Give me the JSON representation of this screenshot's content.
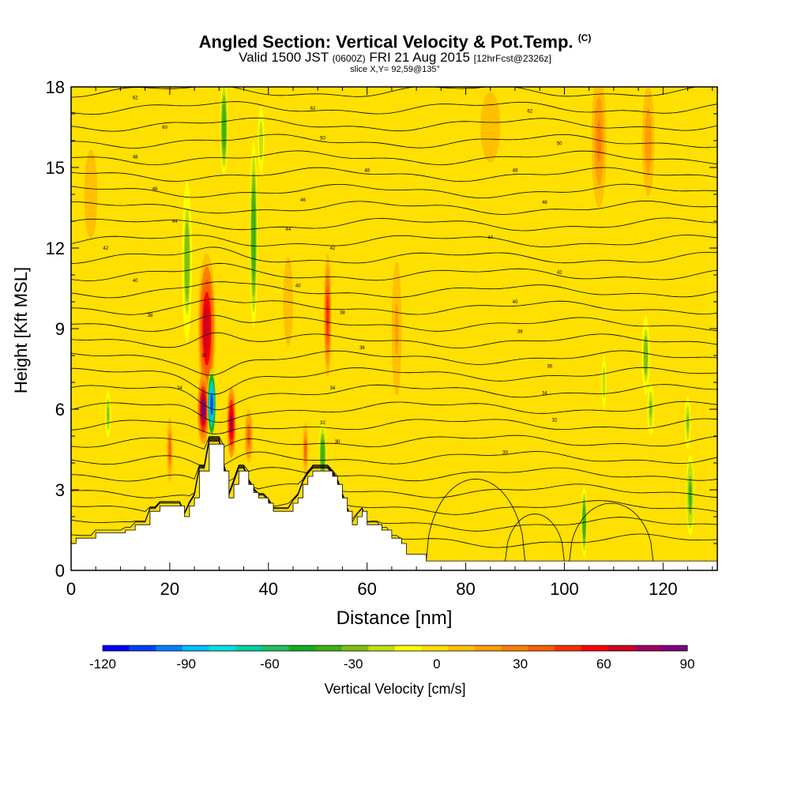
{
  "title": {
    "main": "Angled Section: Vertical Velocity & Pot.Temp.",
    "copyright_mark": "(C)",
    "valid_prefix": "Valid 1500 JST",
    "valid_utc": "(0600Z)",
    "valid_date": "FRI 21 Aug 2015",
    "forecast": "[12hrFcst@2326z]",
    "slice": "slice X,Y= 92,59@135°"
  },
  "chart_data": {
    "type": "heatmap",
    "xlabel": "Distance [nm]",
    "ylabel": "Height [Kft MSL]",
    "xlim": [
      0,
      131
    ],
    "ylim": [
      0,
      18
    ],
    "x_ticks": [
      0,
      20,
      40,
      60,
      80,
      100,
      120
    ],
    "y_ticks": [
      0,
      3,
      6,
      9,
      12,
      15,
      18
    ],
    "grid": false,
    "colorbar": {
      "label": "Vertical Velocity [cm/s]",
      "min": -120,
      "max": 90,
      "step": 10,
      "tick_labels": [
        -120,
        -90,
        -60,
        -30,
        0,
        30,
        60,
        90
      ],
      "colors": [
        "#0000ff",
        "#0040ff",
        "#0080ff",
        "#00c0ff",
        "#00e0e0",
        "#00d0a0",
        "#20c060",
        "#10b020",
        "#40b010",
        "#80c010",
        "#c0e010",
        "#ffff00",
        "#ffe000",
        "#ffc000",
        "#ffa000",
        "#ff8000",
        "#ff6000",
        "#ff3000",
        "#ff0000",
        "#d00020",
        "#a00060",
        "#800080"
      ]
    },
    "terrain_profile": [
      [
        0,
        1.0
      ],
      [
        1,
        1.0
      ],
      [
        1,
        1.2
      ],
      [
        5,
        1.2
      ],
      [
        5,
        1.4
      ],
      [
        11,
        1.4
      ],
      [
        11,
        1.5
      ],
      [
        13,
        1.5
      ],
      [
        13,
        1.7
      ],
      [
        16,
        1.7
      ],
      [
        16,
        2.2
      ],
      [
        18,
        2.2
      ],
      [
        18,
        2.4
      ],
      [
        23,
        2.4
      ],
      [
        23,
        2.0
      ],
      [
        24,
        2.0
      ],
      [
        24,
        2.4
      ],
      [
        25,
        2.4
      ],
      [
        25,
        2.7
      ],
      [
        26,
        2.7
      ],
      [
        26,
        3.7
      ],
      [
        28,
        3.7
      ],
      [
        28,
        4.7
      ],
      [
        31,
        4.7
      ],
      [
        31,
        3.7
      ],
      [
        32,
        3.7
      ],
      [
        32,
        2.7
      ],
      [
        33,
        2.7
      ],
      [
        33,
        3.2
      ],
      [
        34,
        3.2
      ],
      [
        34,
        3.7
      ],
      [
        36,
        3.7
      ],
      [
        36,
        3.2
      ],
      [
        37,
        3.2
      ],
      [
        37,
        2.9
      ],
      [
        38,
        2.9
      ],
      [
        38,
        2.7
      ],
      [
        40,
        2.7
      ],
      [
        40,
        2.5
      ],
      [
        41,
        2.5
      ],
      [
        41,
        2.2
      ],
      [
        45,
        2.2
      ],
      [
        45,
        2.5
      ],
      [
        46,
        2.5
      ],
      [
        46,
        2.7
      ],
      [
        47,
        2.7
      ],
      [
        47,
        3.2
      ],
      [
        48,
        3.2
      ],
      [
        48,
        3.5
      ],
      [
        49,
        3.5
      ],
      [
        49,
        3.7
      ],
      [
        53,
        3.7
      ],
      [
        53,
        3.5
      ],
      [
        54,
        3.5
      ],
      [
        54,
        3.2
      ],
      [
        55,
        3.2
      ],
      [
        55,
        2.7
      ],
      [
        56,
        2.7
      ],
      [
        56,
        2.2
      ],
      [
        57,
        2.2
      ],
      [
        57,
        1.7
      ],
      [
        58,
        1.7
      ],
      [
        58,
        2.0
      ],
      [
        59,
        2.0
      ],
      [
        59,
        2.2
      ],
      [
        60,
        2.2
      ],
      [
        60,
        1.7
      ],
      [
        63,
        1.7
      ],
      [
        63,
        1.5
      ],
      [
        65,
        1.5
      ],
      [
        65,
        1.2
      ],
      [
        67,
        1.2
      ],
      [
        67,
        1.0
      ],
      [
        68,
        1.0
      ],
      [
        68,
        0.6
      ],
      [
        72,
        0.6
      ],
      [
        72,
        0.35
      ],
      [
        131,
        0.35
      ]
    ],
    "theta_contour_labels": [
      {
        "x": 13,
        "y": 17.6,
        "v": "62"
      },
      {
        "x": 19,
        "y": 16.5,
        "v": "60"
      },
      {
        "x": 13,
        "y": 15.4,
        "v": "48"
      },
      {
        "x": 17,
        "y": 14.2,
        "v": "46"
      },
      {
        "x": 21,
        "y": 13.0,
        "v": "44"
      },
      {
        "x": 7,
        "y": 12.0,
        "v": "42"
      },
      {
        "x": 13,
        "y": 10.8,
        "v": "40"
      },
      {
        "x": 16,
        "y": 9.5,
        "v": "38"
      },
      {
        "x": 27,
        "y": 8.0,
        "v": "36"
      },
      {
        "x": 22,
        "y": 6.8,
        "v": "34"
      },
      {
        "x": 49,
        "y": 17.2,
        "v": "62"
      },
      {
        "x": 51,
        "y": 16.1,
        "v": "50"
      },
      {
        "x": 60,
        "y": 14.9,
        "v": "48"
      },
      {
        "x": 47,
        "y": 13.8,
        "v": "46"
      },
      {
        "x": 44,
        "y": 12.7,
        "v": "44"
      },
      {
        "x": 53,
        "y": 12.0,
        "v": "42"
      },
      {
        "x": 46,
        "y": 10.6,
        "v": "40"
      },
      {
        "x": 55,
        "y": 9.6,
        "v": "38"
      },
      {
        "x": 59,
        "y": 8.3,
        "v": "36"
      },
      {
        "x": 53,
        "y": 6.8,
        "v": "34"
      },
      {
        "x": 51,
        "y": 5.5,
        "v": "32"
      },
      {
        "x": 54,
        "y": 4.8,
        "v": "30"
      },
      {
        "x": 93,
        "y": 17.1,
        "v": "62"
      },
      {
        "x": 99,
        "y": 15.9,
        "v": "50"
      },
      {
        "x": 90,
        "y": 14.9,
        "v": "48"
      },
      {
        "x": 96,
        "y": 13.7,
        "v": "46"
      },
      {
        "x": 85,
        "y": 12.4,
        "v": "44"
      },
      {
        "x": 99,
        "y": 11.1,
        "v": "42"
      },
      {
        "x": 90,
        "y": 10.0,
        "v": "40"
      },
      {
        "x": 91,
        "y": 8.9,
        "v": "38"
      },
      {
        "x": 97,
        "y": 7.6,
        "v": "36"
      },
      {
        "x": 96,
        "y": 6.6,
        "v": "34"
      },
      {
        "x": 98,
        "y": 5.6,
        "v": "32"
      },
      {
        "x": 88,
        "y": 4.4,
        "v": "30"
      }
    ],
    "velocity_features": [
      {
        "x": 27.5,
        "y": 9.0,
        "v": 75,
        "sx": 1.8,
        "sy": 2.8
      },
      {
        "x": 26.8,
        "y": 6.0,
        "v": 90,
        "sx": 1.2,
        "sy": 1.3
      },
      {
        "x": 28.5,
        "y": 6.2,
        "v": -110,
        "sx": 0.9,
        "sy": 1.3
      },
      {
        "x": 32.5,
        "y": 5.5,
        "v": 85,
        "sx": 0.9,
        "sy": 1.3
      },
      {
        "x": 23.5,
        "y": 11.5,
        "v": -30,
        "sx": 1.0,
        "sy": 3.0
      },
      {
        "x": 31.0,
        "y": 16.5,
        "v": -40,
        "sx": 0.8,
        "sy": 1.8
      },
      {
        "x": 37.0,
        "y": 12.5,
        "v": -40,
        "sx": 0.8,
        "sy": 3.5
      },
      {
        "x": 38.5,
        "y": 16.0,
        "v": -20,
        "sx": 0.8,
        "sy": 1.5
      },
      {
        "x": 36.0,
        "y": 5.0,
        "v": 45,
        "sx": 0.8,
        "sy": 1.0
      },
      {
        "x": 47.5,
        "y": 4.5,
        "v": 40,
        "sx": 0.6,
        "sy": 1.0
      },
      {
        "x": 51.0,
        "y": 4.3,
        "v": -40,
        "sx": 0.8,
        "sy": 1.2
      },
      {
        "x": 52.0,
        "y": 9.5,
        "v": 50,
        "sx": 0.8,
        "sy": 2.3
      },
      {
        "x": 7.5,
        "y": 5.8,
        "v": -25,
        "sx": 0.6,
        "sy": 0.9
      },
      {
        "x": 20.0,
        "y": 4.5,
        "v": 40,
        "sx": 0.6,
        "sy": 1.2
      },
      {
        "x": 104.0,
        "y": 1.8,
        "v": -40,
        "sx": 0.6,
        "sy": 1.3
      },
      {
        "x": 116.5,
        "y": 8.0,
        "v": -30,
        "sx": 0.8,
        "sy": 1.5
      },
      {
        "x": 117.5,
        "y": 6.0,
        "v": -25,
        "sx": 0.7,
        "sy": 1.0
      },
      {
        "x": 125.5,
        "y": 2.8,
        "v": -35,
        "sx": 0.8,
        "sy": 1.5
      },
      {
        "x": 125.0,
        "y": 5.5,
        "v": -25,
        "sx": 0.6,
        "sy": 1.0
      },
      {
        "x": 108.0,
        "y": 7.0,
        "v": -20,
        "sx": 0.6,
        "sy": 1.2
      },
      {
        "x": 107.0,
        "y": 16.0,
        "v": 30,
        "sx": 1.5,
        "sy": 2.5
      },
      {
        "x": 117.0,
        "y": 16.0,
        "v": 25,
        "sx": 1.5,
        "sy": 2.5
      },
      {
        "x": 85.0,
        "y": 16.5,
        "v": 15,
        "sx": 3.0,
        "sy": 2.0
      },
      {
        "x": 66.0,
        "y": 9.0,
        "v": 20,
        "sx": 1.2,
        "sy": 3.0
      },
      {
        "x": 4.0,
        "y": 14.0,
        "v": 15,
        "sx": 2.0,
        "sy": 2.5
      },
      {
        "x": 44.0,
        "y": 10.0,
        "v": 15,
        "sx": 1.5,
        "sy": 2.5
      }
    ]
  }
}
